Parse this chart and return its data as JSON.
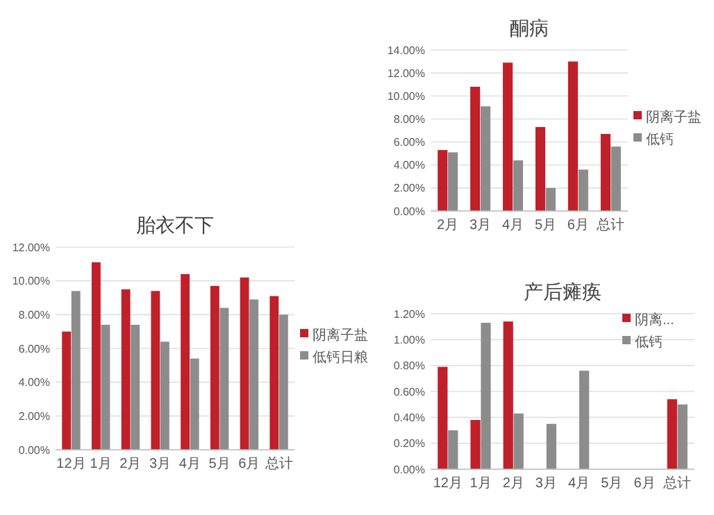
{
  "chart_data": [
    {
      "type": "bar",
      "title": "胎衣不下",
      "categories": [
        "12月",
        "1月",
        "2月",
        "3月",
        "4月",
        "5月",
        "6月",
        "总计"
      ],
      "ylim": [
        0,
        12
      ],
      "yticks": [
        {
          "value": 0,
          "label": "0.00%"
        },
        {
          "value": 2,
          "label": "2.00%"
        },
        {
          "value": 4,
          "label": "4.00%"
        },
        {
          "value": 6,
          "label": "6.00%"
        },
        {
          "value": 8,
          "label": "8.00%"
        },
        {
          "value": 10,
          "label": "10.00%"
        },
        {
          "value": 12,
          "label": "12.00%"
        }
      ],
      "grid": "y",
      "legend": "right",
      "series": [
        {
          "name": "阴离子盐",
          "color": "#c0202a",
          "values": [
            7.0,
            11.1,
            9.5,
            9.4,
            10.4,
            9.7,
            10.2,
            9.1
          ]
        },
        {
          "name": "低钙日粮",
          "color": "#8c8c8c",
          "values": [
            9.4,
            7.4,
            7.4,
            6.4,
            5.4,
            8.4,
            8.9,
            8.0
          ]
        }
      ]
    },
    {
      "type": "bar",
      "title": "酮病",
      "categories": [
        "2月",
        "3月",
        "4月",
        "5月",
        "6月",
        "总计"
      ],
      "ylim": [
        0,
        14
      ],
      "yticks": [
        {
          "value": 0,
          "label": "0.00%"
        },
        {
          "value": 2,
          "label": "2.00%"
        },
        {
          "value": 4,
          "label": "4.00%"
        },
        {
          "value": 6,
          "label": "6.00%"
        },
        {
          "value": 8,
          "label": "8.00%"
        },
        {
          "value": 10,
          "label": "10.00%"
        },
        {
          "value": 12,
          "label": "12.00%"
        },
        {
          "value": 14,
          "label": "14.00%"
        }
      ],
      "grid": "y",
      "legend": "right",
      "series": [
        {
          "name": "阴离子盐",
          "color": "#c0202a",
          "values": [
            5.3,
            10.8,
            12.9,
            7.3,
            13.0,
            6.7
          ]
        },
        {
          "name": "低钙",
          "color": "#8c8c8c",
          "values": [
            5.1,
            9.1,
            4.4,
            2.0,
            3.6,
            5.6
          ]
        }
      ]
    },
    {
      "type": "bar",
      "title": "产后瘫痪",
      "categories": [
        "12月",
        "1月",
        "2月",
        "3月",
        "4月",
        "5月",
        "6月",
        "总计"
      ],
      "ylim": [
        0,
        1.2
      ],
      "yticks": [
        {
          "value": 0,
          "label": "0.00%"
        },
        {
          "value": 0.2,
          "label": "0.20%"
        },
        {
          "value": 0.4,
          "label": "0.40%"
        },
        {
          "value": 0.6,
          "label": "0.60%"
        },
        {
          "value": 0.8,
          "label": "0.80%"
        },
        {
          "value": 1,
          "label": "1.00%"
        },
        {
          "value": 1.2,
          "label": "1.20%"
        }
      ],
      "grid": "y",
      "legend": "top right",
      "series": [
        {
          "name": "阴离...",
          "color": "#c0202a",
          "values": [
            0.79,
            0.38,
            1.14,
            0,
            0,
            0,
            0,
            0.54
          ]
        },
        {
          "name": "低钙",
          "color": "#8c8c8c",
          "values": [
            0.3,
            1.13,
            0.43,
            0.35,
            0.76,
            0,
            0,
            0.5
          ]
        }
      ]
    }
  ]
}
